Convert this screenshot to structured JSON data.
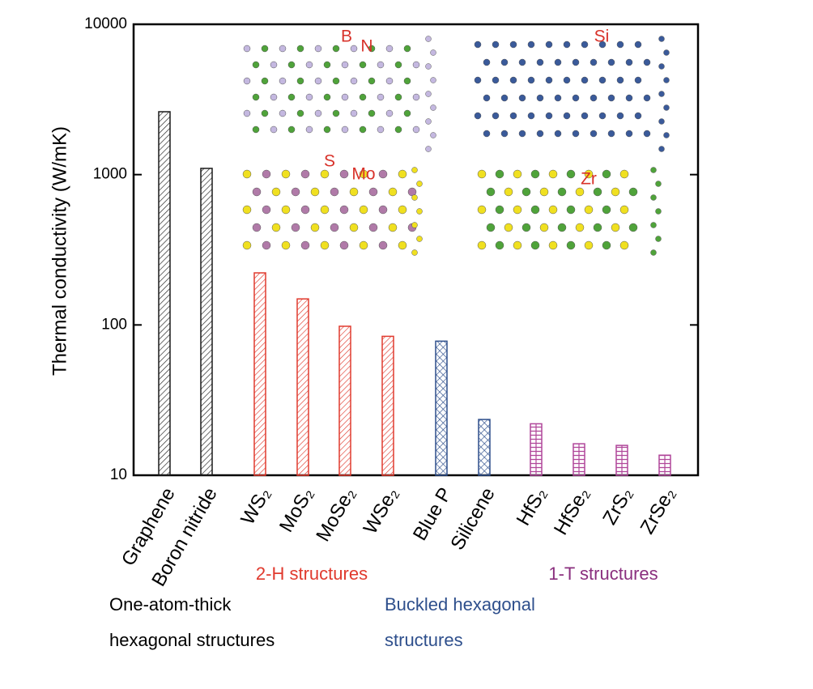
{
  "chart_data": {
    "type": "bar",
    "y_label": "Thermal conductivity (W/mK)",
    "categories": [
      "Graphene",
      "Boron nitride",
      "WS₂",
      "MoS₂",
      "MoSe₂",
      "WSe₂",
      "Blue P",
      "Silicene",
      "HfS₂",
      "HfSe₂",
      "ZrS₂",
      "ZrSe₂"
    ],
    "values": [
      2620,
      1100,
      222,
      149,
      98,
      84,
      78,
      23.5,
      22,
      16.2,
      15.8,
      13.6
    ],
    "colors": [
      "#1a1a1a",
      "#1a1a1a",
      "#e03a2e",
      "#e03a2e",
      "#e03a2e",
      "#e03a2e",
      "#2e4f8c",
      "#2e4f8c",
      "#b0479a",
      "#b0479a",
      "#b0479a",
      "#b0479a"
    ],
    "hatch": [
      "diag",
      "diag",
      "diag",
      "diag",
      "diag",
      "diag",
      "cross",
      "cross",
      "ladder",
      "ladder",
      "ladder",
      "ladder"
    ],
    "log_y": true,
    "ylim": [
      10,
      10000
    ],
    "yticks": [
      10,
      100,
      1000,
      10000
    ],
    "annotations": [
      {
        "text": "2-H structures",
        "color": "#e03a2e"
      },
      {
        "text": "1-T structures",
        "color": "#8a2f7e"
      },
      {
        "text": "One-atom-thick",
        "color": "#000000"
      },
      {
        "text": "hexagonal structures",
        "color": "#000000"
      },
      {
        "text": "Buckled hexagonal",
        "color": "#2e4f8c"
      },
      {
        "text": "structures",
        "color": "#2e4f8c"
      }
    ],
    "inset_labels": [
      "B",
      "N",
      "Si",
      "S",
      "Mo",
      "Zr"
    ]
  }
}
